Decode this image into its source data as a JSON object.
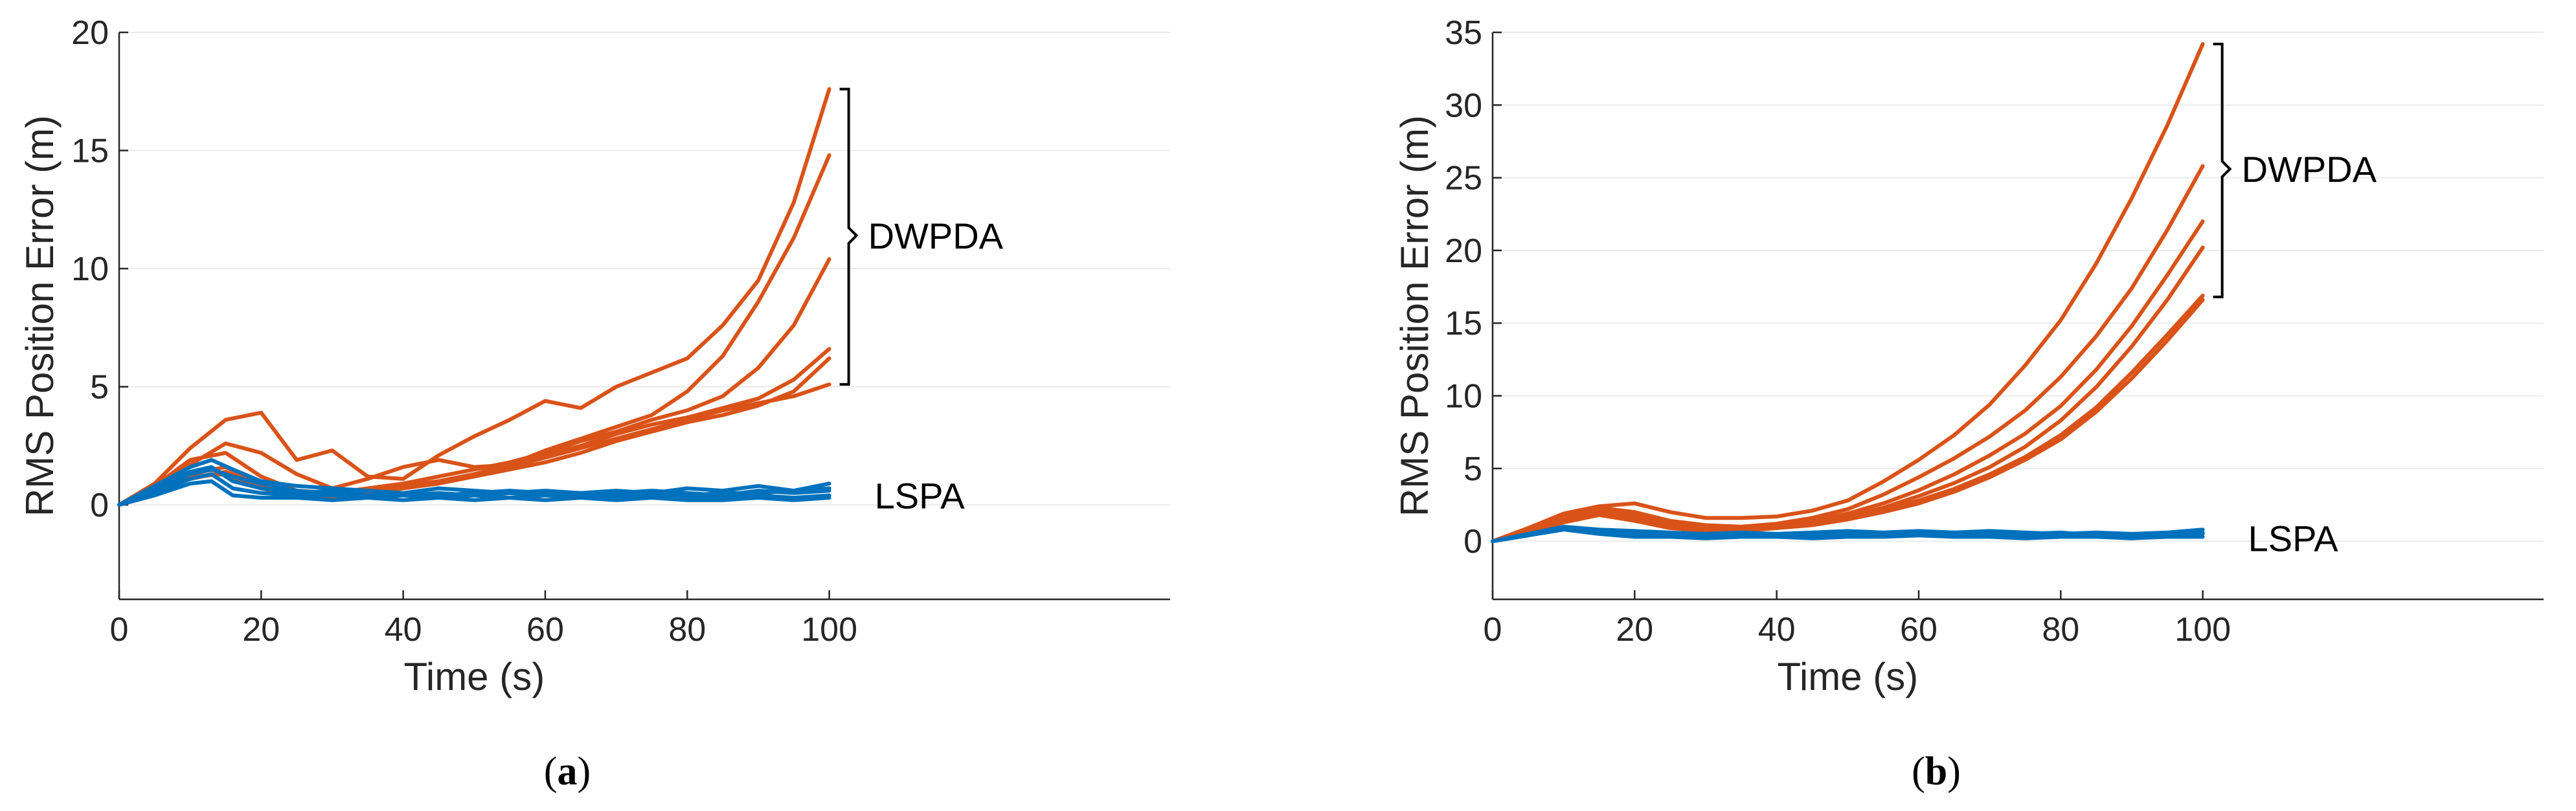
{
  "chart_data": [
    {
      "type": "line",
      "caption_letter": "a",
      "xlabel": "Time (s)",
      "ylabel": "RMS Position Error (m)",
      "xlim": [
        0,
        148
      ],
      "ylim": [
        -4,
        20
      ],
      "xticks": [
        0,
        20,
        40,
        60,
        80,
        100
      ],
      "yticks": [
        0,
        5,
        10,
        15,
        20
      ],
      "grid": "horizontal",
      "colors": {
        "DWPDA": "#D95319",
        "LSPA": "#0072BD"
      },
      "annotations": [
        {
          "text": "DWPDA",
          "group": "DWPDA",
          "y_text": 11.4,
          "bracket": [
            5.1,
            17.6
          ]
        },
        {
          "text": "LSPA",
          "group": "LSPA",
          "y_text": 0.4
        }
      ],
      "series": [
        {
          "group": "DWPDA",
          "x": [
            0,
            5,
            10,
            15,
            20,
            25,
            30,
            35,
            40,
            45,
            50,
            55,
            60,
            65,
            70,
            75,
            80,
            85,
            90,
            95,
            100
          ],
          "y": [
            0,
            0.9,
            2.4,
            3.6,
            3.9,
            1.9,
            2.3,
            1.2,
            1.1,
            2.1,
            2.9,
            3.6,
            4.4,
            4.1,
            5.0,
            5.6,
            6.2,
            7.6,
            9.5,
            12.8,
            17.6
          ]
        },
        {
          "group": "DWPDA",
          "x": [
            0,
            5,
            10,
            15,
            20,
            25,
            30,
            35,
            40,
            45,
            50,
            55,
            60,
            65,
            70,
            75,
            80,
            85,
            90,
            95,
            100
          ],
          "y": [
            0,
            0.7,
            1.7,
            2.6,
            2.2,
            1.3,
            0.7,
            1.1,
            1.6,
            1.9,
            1.6,
            1.7,
            2.3,
            2.8,
            3.3,
            3.8,
            4.8,
            6.3,
            8.6,
            11.3,
            14.8
          ]
        },
        {
          "group": "DWPDA",
          "x": [
            0,
            5,
            10,
            15,
            20,
            25,
            30,
            35,
            40,
            45,
            50,
            55,
            60,
            65,
            70,
            75,
            80,
            85,
            90,
            95,
            100
          ],
          "y": [
            0,
            0.8,
            1.9,
            2.2,
            1.2,
            0.6,
            0.5,
            0.7,
            0.9,
            1.2,
            1.5,
            1.8,
            2.2,
            2.7,
            3.1,
            3.6,
            4.0,
            4.6,
            5.8,
            7.6,
            10.4
          ]
        },
        {
          "group": "DWPDA",
          "x": [
            0,
            5,
            10,
            15,
            20,
            25,
            30,
            35,
            40,
            45,
            50,
            55,
            60,
            65,
            70,
            75,
            80,
            85,
            90,
            95,
            100
          ],
          "y": [
            0,
            0.6,
            1.3,
            1.6,
            0.9,
            0.5,
            0.4,
            0.6,
            0.8,
            1.0,
            1.3,
            1.7,
            2.1,
            2.5,
            3.0,
            3.4,
            3.7,
            4.1,
            4.5,
            5.3,
            6.6
          ]
        },
        {
          "group": "DWPDA",
          "x": [
            0,
            5,
            10,
            15,
            20,
            25,
            30,
            35,
            40,
            45,
            50,
            55,
            60,
            65,
            70,
            75,
            80,
            85,
            90,
            95,
            100
          ],
          "y": [
            0,
            0.5,
            1.1,
            1.4,
            0.8,
            0.4,
            0.3,
            0.5,
            0.7,
            0.9,
            1.2,
            1.5,
            1.8,
            2.2,
            2.7,
            3.1,
            3.5,
            3.8,
            4.2,
            4.8,
            6.2
          ]
        },
        {
          "group": "DWPDA",
          "x": [
            0,
            5,
            10,
            15,
            20,
            25,
            30,
            35,
            40,
            45,
            50,
            55,
            60,
            65,
            70,
            75,
            80,
            85,
            90,
            95,
            100
          ],
          "y": [
            0,
            0.6,
            1.2,
            1.3,
            0.7,
            0.4,
            0.4,
            0.6,
            0.8,
            1.0,
            1.2,
            1.6,
            2.0,
            2.4,
            2.8,
            3.2,
            3.6,
            4.0,
            4.3,
            4.6,
            5.1
          ]
        },
        {
          "group": "LSPA",
          "x": [
            0,
            5,
            10,
            13,
            16,
            20,
            25,
            30,
            35,
            40,
            45,
            50,
            55,
            60,
            65,
            70,
            75,
            80,
            85,
            90,
            95,
            100
          ],
          "y": [
            0,
            0.8,
            1.6,
            1.9,
            1.5,
            1.0,
            0.8,
            0.7,
            0.6,
            0.5,
            0.7,
            0.6,
            0.5,
            0.6,
            0.5,
            0.6,
            0.5,
            0.7,
            0.6,
            0.8,
            0.6,
            0.9
          ]
        },
        {
          "group": "LSPA",
          "x": [
            0,
            5,
            10,
            13,
            16,
            20,
            25,
            30,
            35,
            40,
            45,
            50,
            55,
            60,
            65,
            70,
            75,
            80,
            85,
            90,
            95,
            100
          ],
          "y": [
            0,
            0.6,
            1.3,
            1.5,
            1.2,
            0.9,
            0.6,
            0.5,
            0.6,
            0.4,
            0.5,
            0.4,
            0.5,
            0.4,
            0.5,
            0.4,
            0.5,
            0.4,
            0.5,
            0.5,
            0.6,
            0.7
          ]
        },
        {
          "group": "LSPA",
          "x": [
            0,
            5,
            10,
            13,
            16,
            20,
            25,
            30,
            35,
            40,
            45,
            50,
            55,
            60,
            65,
            70,
            75,
            80,
            85,
            90,
            95,
            100
          ],
          "y": [
            0,
            0.5,
            1.1,
            1.3,
            0.7,
            0.5,
            0.4,
            0.4,
            0.3,
            0.4,
            0.3,
            0.4,
            0.3,
            0.4,
            0.3,
            0.3,
            0.4,
            0.3,
            0.3,
            0.4,
            0.3,
            0.4
          ]
        },
        {
          "group": "LSPA",
          "x": [
            0,
            5,
            10,
            13,
            16,
            20,
            25,
            30,
            35,
            40,
            45,
            50,
            55,
            60,
            65,
            70,
            75,
            80,
            85,
            90,
            95,
            100
          ],
          "y": [
            0,
            0.7,
            1.4,
            1.6,
            1.0,
            0.7,
            0.5,
            0.6,
            0.4,
            0.5,
            0.4,
            0.5,
            0.6,
            0.5,
            0.4,
            0.5,
            0.6,
            0.5,
            0.4,
            0.6,
            0.5,
            0.6
          ]
        },
        {
          "group": "LSPA",
          "x": [
            0,
            5,
            10,
            13,
            16,
            20,
            25,
            30,
            35,
            40,
            45,
            50,
            55,
            60,
            65,
            70,
            75,
            80,
            85,
            90,
            95,
            100
          ],
          "y": [
            0,
            0.4,
            0.9,
            1.0,
            0.4,
            0.3,
            0.3,
            0.2,
            0.3,
            0.2,
            0.3,
            0.2,
            0.3,
            0.2,
            0.3,
            0.2,
            0.3,
            0.2,
            0.2,
            0.3,
            0.2,
            0.3
          ]
        }
      ]
    },
    {
      "type": "line",
      "caption_letter": "b",
      "xlabel": "Time (s)",
      "ylabel": "RMS Position Error (m)",
      "xlim": [
        0,
        148
      ],
      "ylim": [
        -4,
        35
      ],
      "xticks": [
        0,
        20,
        40,
        60,
        80,
        100
      ],
      "yticks": [
        0,
        5,
        10,
        15,
        20,
        25,
        30,
        35
      ],
      "grid": "horizontal",
      "colors": {
        "DWPDA": "#D95319",
        "LSPA": "#0072BD"
      },
      "annotations": [
        {
          "text": "DWPDA",
          "group": "DWPDA",
          "y_text": 25.6,
          "bracket": [
            16.8,
            34.2
          ]
        },
        {
          "text": "LSPA",
          "group": "LSPA",
          "y_text": 0.2
        }
      ],
      "series": [
        {
          "group": "DWPDA",
          "x": [
            0,
            5,
            10,
            15,
            20,
            25,
            30,
            35,
            40,
            45,
            50,
            55,
            60,
            65,
            70,
            75,
            80,
            85,
            90,
            95,
            100
          ],
          "y": [
            0,
            0.9,
            1.9,
            2.4,
            2.6,
            2.0,
            1.6,
            1.6,
            1.7,
            2.1,
            2.8,
            4.1,
            5.6,
            7.3,
            9.4,
            12.1,
            15.2,
            19.1,
            23.6,
            28.6,
            34.2
          ]
        },
        {
          "group": "DWPDA",
          "x": [
            0,
            5,
            10,
            15,
            20,
            25,
            30,
            35,
            40,
            45,
            50,
            55,
            60,
            65,
            70,
            75,
            80,
            85,
            90,
            95,
            100
          ],
          "y": [
            0,
            0.8,
            1.7,
            2.3,
            2.0,
            1.4,
            1.1,
            1.0,
            1.2,
            1.6,
            2.2,
            3.2,
            4.4,
            5.7,
            7.2,
            9.0,
            11.3,
            14.1,
            17.4,
            21.4,
            25.8
          ]
        },
        {
          "group": "DWPDA",
          "x": [
            0,
            5,
            10,
            15,
            20,
            25,
            30,
            35,
            40,
            45,
            50,
            55,
            60,
            65,
            70,
            75,
            80,
            85,
            90,
            95,
            100
          ],
          "y": [
            0,
            0.7,
            1.6,
            2.1,
            1.8,
            1.2,
            0.9,
            0.9,
            1.1,
            1.4,
            1.9,
            2.6,
            3.5,
            4.6,
            5.9,
            7.4,
            9.3,
            11.8,
            14.8,
            18.3,
            22.0
          ]
        },
        {
          "group": "DWPDA",
          "x": [
            0,
            5,
            10,
            15,
            20,
            25,
            30,
            35,
            40,
            45,
            50,
            55,
            60,
            65,
            70,
            75,
            80,
            85,
            90,
            95,
            100
          ],
          "y": [
            0,
            0.7,
            1.5,
            2.0,
            1.6,
            1.1,
            0.8,
            0.8,
            1.0,
            1.3,
            1.7,
            2.3,
            3.1,
            4.0,
            5.1,
            6.5,
            8.3,
            10.6,
            13.4,
            16.6,
            20.2
          ]
        },
        {
          "group": "DWPDA",
          "x": [
            0,
            5,
            10,
            15,
            20,
            25,
            30,
            35,
            40,
            45,
            50,
            55,
            60,
            65,
            70,
            75,
            80,
            85,
            90,
            95,
            100
          ],
          "y": [
            0,
            0.6,
            1.4,
            1.9,
            1.5,
            1.0,
            0.8,
            0.8,
            0.9,
            1.2,
            1.6,
            2.1,
            2.8,
            3.6,
            4.6,
            5.8,
            7.3,
            9.2,
            11.6,
            14.2,
            16.9
          ]
        },
        {
          "group": "DWPDA",
          "x": [
            0,
            5,
            10,
            15,
            20,
            25,
            30,
            35,
            40,
            45,
            50,
            55,
            60,
            65,
            70,
            75,
            80,
            85,
            90,
            95,
            100
          ],
          "y": [
            0,
            0.6,
            1.3,
            1.8,
            1.4,
            0.9,
            0.7,
            0.7,
            0.9,
            1.1,
            1.5,
            2.0,
            2.6,
            3.4,
            4.4,
            5.6,
            7.0,
            8.9,
            11.2,
            13.8,
            16.6
          ]
        },
        {
          "group": "LSPA",
          "x": [
            0,
            5,
            10,
            15,
            20,
            25,
            30,
            35,
            40,
            45,
            50,
            55,
            60,
            65,
            70,
            75,
            80,
            85,
            90,
            95,
            100
          ],
          "y": [
            0,
            0.5,
            1.0,
            0.8,
            0.7,
            0.6,
            0.5,
            0.6,
            0.5,
            0.6,
            0.7,
            0.6,
            0.7,
            0.6,
            0.7,
            0.6,
            0.5,
            0.6,
            0.5,
            0.6,
            0.8
          ]
        },
        {
          "group": "LSPA",
          "x": [
            0,
            5,
            10,
            15,
            20,
            25,
            30,
            35,
            40,
            45,
            50,
            55,
            60,
            65,
            70,
            75,
            80,
            85,
            90,
            95,
            100
          ],
          "y": [
            0,
            0.4,
            0.9,
            0.6,
            0.5,
            0.4,
            0.4,
            0.5,
            0.4,
            0.5,
            0.4,
            0.5,
            0.6,
            0.5,
            0.5,
            0.4,
            0.4,
            0.5,
            0.4,
            0.5,
            0.6
          ]
        },
        {
          "group": "LSPA",
          "x": [
            0,
            5,
            10,
            15,
            20,
            25,
            30,
            35,
            40,
            45,
            50,
            55,
            60,
            65,
            70,
            75,
            80,
            85,
            90,
            95,
            100
          ],
          "y": [
            0,
            0.4,
            0.8,
            0.5,
            0.3,
            0.3,
            0.2,
            0.3,
            0.3,
            0.2,
            0.3,
            0.3,
            0.4,
            0.3,
            0.3,
            0.2,
            0.3,
            0.3,
            0.2,
            0.3,
            0.3
          ]
        },
        {
          "group": "LSPA",
          "x": [
            0,
            5,
            10,
            15,
            20,
            25,
            30,
            35,
            40,
            45,
            50,
            55,
            60,
            65,
            70,
            75,
            80,
            85,
            90,
            95,
            100
          ],
          "y": [
            0,
            0.5,
            0.9,
            0.7,
            0.6,
            0.5,
            0.4,
            0.4,
            0.5,
            0.4,
            0.5,
            0.5,
            0.5,
            0.6,
            0.4,
            0.5,
            0.6,
            0.4,
            0.5,
            0.4,
            0.5
          ]
        }
      ]
    }
  ]
}
